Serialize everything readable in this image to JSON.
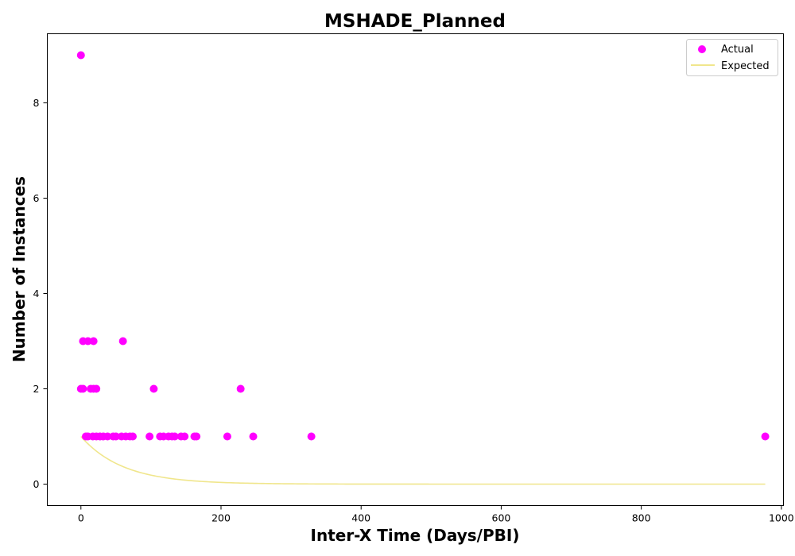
{
  "chart_data": {
    "type": "scatter",
    "title": "MSHADE_Planned",
    "xlabel": "Inter-X Time (Days/PBI)",
    "ylabel": "Number of Instances",
    "xlim": [
      -48,
      1003
    ],
    "ylim": [
      -0.45,
      9.45
    ],
    "xticks": [
      0,
      200,
      400,
      600,
      800,
      1000
    ],
    "yticks": [
      0,
      2,
      4,
      6,
      8
    ],
    "legend_position": "upper right",
    "grid": false,
    "series": [
      {
        "name": "Actual",
        "kind": "scatter",
        "color": "#ff00ff",
        "points": [
          [
            0,
            9
          ],
          [
            0,
            2
          ],
          [
            3,
            2
          ],
          [
            14,
            2
          ],
          [
            18,
            2
          ],
          [
            22,
            2
          ],
          [
            104,
            2
          ],
          [
            228,
            2
          ],
          [
            3,
            3
          ],
          [
            10,
            3
          ],
          [
            18,
            3
          ],
          [
            60,
            3
          ],
          [
            7,
            1
          ],
          [
            10,
            1
          ],
          [
            17,
            1
          ],
          [
            22,
            1
          ],
          [
            27,
            1
          ],
          [
            32,
            1
          ],
          [
            38,
            1
          ],
          [
            46,
            1
          ],
          [
            50,
            1
          ],
          [
            58,
            1
          ],
          [
            64,
            1
          ],
          [
            70,
            1
          ],
          [
            74,
            1
          ],
          [
            98,
            1
          ],
          [
            113,
            1
          ],
          [
            118,
            1
          ],
          [
            125,
            1
          ],
          [
            130,
            1
          ],
          [
            134,
            1
          ],
          [
            143,
            1
          ],
          [
            148,
            1
          ],
          [
            162,
            1
          ],
          [
            165,
            1
          ],
          [
            209,
            1
          ],
          [
            246,
            1
          ],
          [
            329,
            1
          ],
          [
            977,
            1
          ]
        ]
      },
      {
        "name": "Expected",
        "kind": "line",
        "color": "#f0e68c",
        "x_range": [
          0,
          977
        ],
        "model": "y = exp(-x / 60)"
      }
    ]
  }
}
